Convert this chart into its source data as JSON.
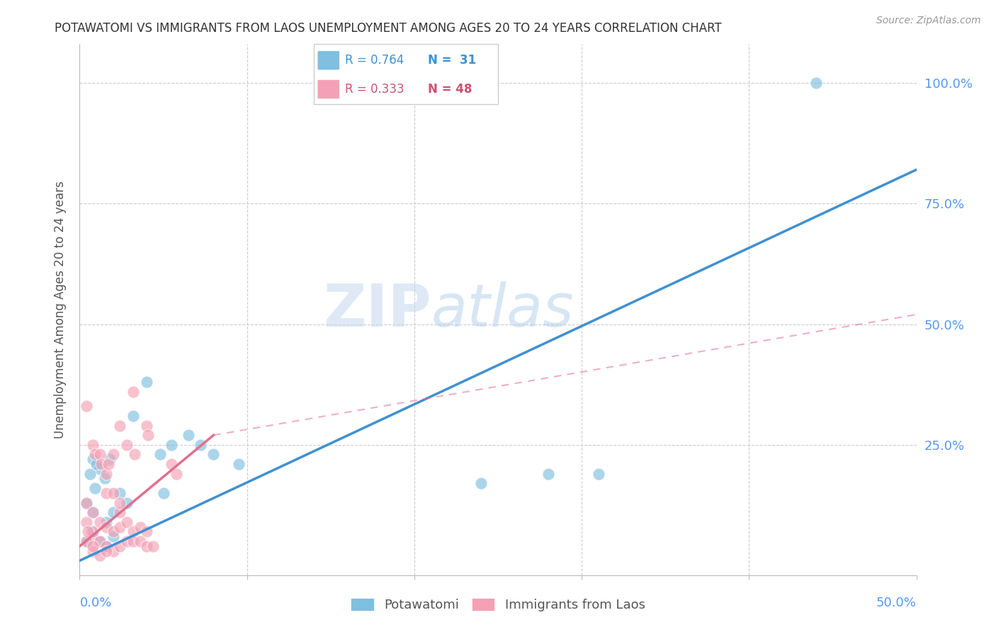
{
  "title": "POTAWATOMI VS IMMIGRANTS FROM LAOS UNEMPLOYMENT AMONG AGES 20 TO 24 YEARS CORRELATION CHART",
  "source": "Source: ZipAtlas.com",
  "ylabel": "Unemployment Among Ages 20 to 24 years",
  "xlim": [
    0,
    0.5
  ],
  "ylim": [
    -0.02,
    1.08
  ],
  "watermark_zip": "ZIP",
  "watermark_atlas": "atlas",
  "blue_color": "#7fbfdf",
  "pink_color": "#f4a0b5",
  "blue_line_color": "#4090d0",
  "pink_line_color": "#e07090",
  "blue_line": [
    [
      0.0,
      0.01
    ],
    [
      0.5,
      0.82
    ]
  ],
  "pink_line_solid": [
    [
      0.0,
      0.04
    ],
    [
      0.08,
      0.27
    ]
  ],
  "pink_line_dash": [
    [
      0.08,
      0.27
    ],
    [
      0.5,
      0.52
    ]
  ],
  "blue_scatter": [
    [
      0.008,
      0.22
    ],
    [
      0.012,
      0.2
    ],
    [
      0.006,
      0.19
    ],
    [
      0.01,
      0.21
    ],
    [
      0.015,
      0.18
    ],
    [
      0.018,
      0.22
    ],
    [
      0.009,
      0.16
    ],
    [
      0.004,
      0.13
    ],
    [
      0.008,
      0.11
    ],
    [
      0.016,
      0.09
    ],
    [
      0.02,
      0.11
    ],
    [
      0.024,
      0.15
    ],
    [
      0.028,
      0.13
    ],
    [
      0.032,
      0.31
    ],
    [
      0.04,
      0.38
    ],
    [
      0.048,
      0.23
    ],
    [
      0.055,
      0.25
    ],
    [
      0.065,
      0.27
    ],
    [
      0.072,
      0.25
    ],
    [
      0.08,
      0.23
    ],
    [
      0.004,
      0.05
    ],
    [
      0.007,
      0.07
    ],
    [
      0.012,
      0.05
    ],
    [
      0.016,
      0.04
    ],
    [
      0.02,
      0.06
    ],
    [
      0.05,
      0.15
    ],
    [
      0.095,
      0.21
    ],
    [
      0.24,
      0.17
    ],
    [
      0.28,
      0.19
    ],
    [
      0.31,
      0.19
    ],
    [
      0.44,
      1.0
    ]
  ],
  "pink_scatter": [
    [
      0.004,
      0.33
    ],
    [
      0.008,
      0.25
    ],
    [
      0.009,
      0.23
    ],
    [
      0.012,
      0.23
    ],
    [
      0.013,
      0.21
    ],
    [
      0.016,
      0.19
    ],
    [
      0.017,
      0.21
    ],
    [
      0.02,
      0.23
    ],
    [
      0.024,
      0.29
    ],
    [
      0.028,
      0.25
    ],
    [
      0.032,
      0.36
    ],
    [
      0.033,
      0.23
    ],
    [
      0.04,
      0.29
    ],
    [
      0.041,
      0.27
    ],
    [
      0.004,
      0.13
    ],
    [
      0.008,
      0.11
    ],
    [
      0.012,
      0.09
    ],
    [
      0.016,
      0.08
    ],
    [
      0.02,
      0.07
    ],
    [
      0.024,
      0.08
    ],
    [
      0.028,
      0.09
    ],
    [
      0.032,
      0.07
    ],
    [
      0.036,
      0.08
    ],
    [
      0.04,
      0.07
    ],
    [
      0.008,
      0.06
    ],
    [
      0.012,
      0.05
    ],
    [
      0.016,
      0.04
    ],
    [
      0.02,
      0.03
    ],
    [
      0.024,
      0.04
    ],
    [
      0.028,
      0.05
    ],
    [
      0.008,
      0.03
    ],
    [
      0.012,
      0.02
    ],
    [
      0.016,
      0.03
    ],
    [
      0.004,
      0.05
    ],
    [
      0.008,
      0.04
    ],
    [
      0.055,
      0.21
    ],
    [
      0.058,
      0.19
    ],
    [
      0.004,
      0.09
    ],
    [
      0.008,
      0.07
    ],
    [
      0.005,
      0.07
    ],
    [
      0.024,
      0.11
    ],
    [
      0.016,
      0.15
    ],
    [
      0.02,
      0.15
    ],
    [
      0.024,
      0.13
    ],
    [
      0.032,
      0.05
    ],
    [
      0.036,
      0.05
    ],
    [
      0.04,
      0.04
    ],
    [
      0.044,
      0.04
    ]
  ],
  "right_ytick_vals": [
    0.25,
    0.5,
    0.75,
    1.0
  ],
  "right_ytick_labels": [
    "25.0%",
    "50.0%",
    "75.0%",
    "100.0%"
  ],
  "grid_yticks": [
    0.25,
    0.5,
    0.75,
    1.0
  ],
  "grid_xticks": [
    0.1,
    0.2,
    0.3,
    0.4
  ]
}
